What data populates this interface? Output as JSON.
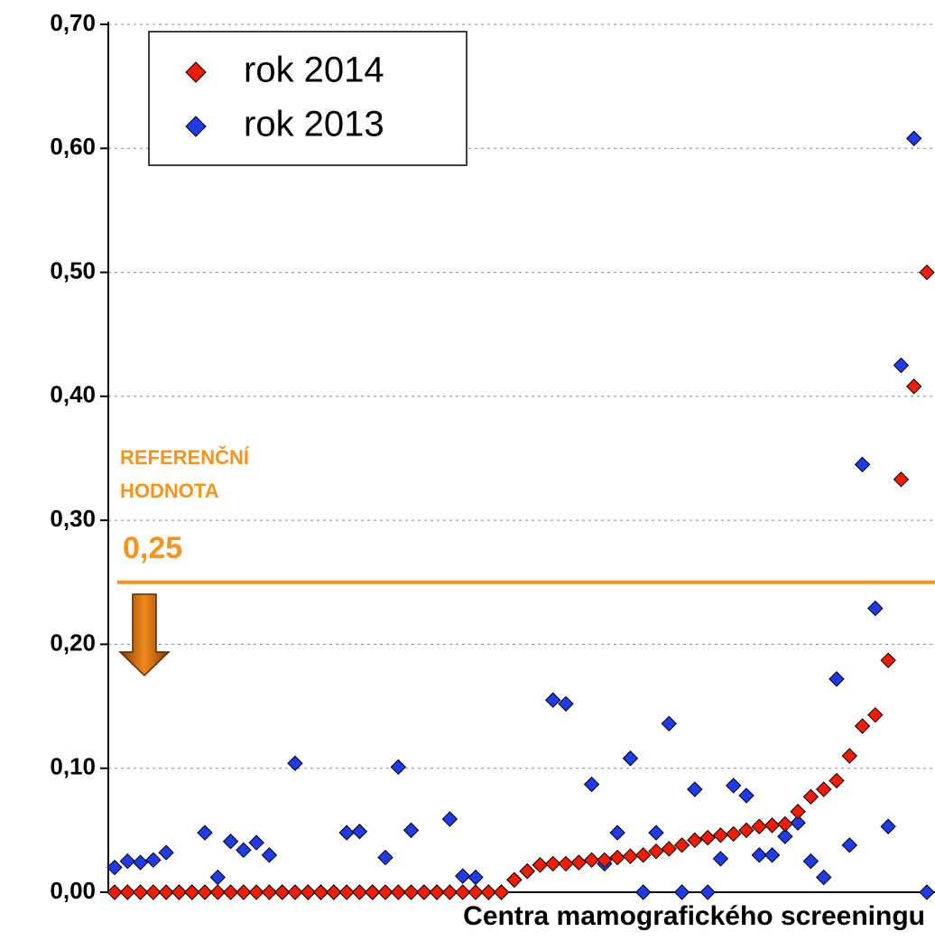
{
  "chart_data": {
    "type": "scatter",
    "x_label": "Centra mamografického screeningu",
    "categories": [
      null,
      null,
      null,
      null,
      null,
      null,
      null,
      null,
      null,
      null,
      null,
      null,
      null,
      null,
      null,
      null,
      null,
      null,
      null,
      null,
      null,
      null,
      null,
      null,
      null,
      null,
      null,
      null,
      null,
      null,
      null,
      null,
      null,
      null,
      null,
      null,
      null,
      null,
      null,
      null,
      null,
      null,
      null,
      null,
      null,
      null,
      null,
      null,
      null,
      null,
      null,
      null,
      null,
      null,
      null,
      null,
      null,
      null,
      null,
      null,
      null,
      null,
      null,
      null
    ],
    "series": [
      {
        "name": "rok 2014",
        "color": "#f21d00",
        "values": [
          0,
          0,
          0,
          0,
          0,
          0,
          0,
          0,
          0,
          0,
          0,
          0,
          0,
          0,
          0,
          0,
          0,
          0,
          0,
          0,
          0,
          0,
          0,
          0,
          0,
          0,
          0,
          0,
          0,
          0,
          0,
          0.01,
          0.017,
          0.022,
          0.023,
          0.023,
          0.024,
          0.026,
          0.026,
          0.028,
          0.029,
          0.03,
          0.033,
          0.035,
          0.038,
          0.042,
          0.044,
          0.046,
          0.047,
          0.05,
          0.053,
          0.054,
          0.055,
          0.065,
          0.077,
          0.083,
          0.09,
          0.11,
          0.134,
          0.143,
          0.187,
          0.333,
          0.408,
          0.5
        ]
      },
      {
        "name": "rok 2013",
        "color": "#1f3be8",
        "values": [
          0.02,
          0.025,
          0.024,
          0.026,
          0.032,
          0,
          0,
          0.048,
          0.012,
          0.041,
          0.034,
          0.04,
          0.03,
          0,
          0.104,
          0,
          0,
          0,
          0.048,
          0.049,
          0,
          0.028,
          0.101,
          0.05,
          0,
          0,
          0.059,
          0.013,
          0.012,
          0,
          0,
          0.01,
          0.017,
          0.022,
          0.155,
          0.152,
          0.024,
          0.087,
          0.023,
          0.048,
          0.108,
          0,
          0.048,
          0.136,
          0,
          0.083,
          0,
          0.027,
          0.086,
          0.078,
          0.03,
          0.03,
          0.045,
          0.056,
          0.025,
          0.012,
          0.172,
          0.038,
          0.345,
          0.229,
          0.053,
          0.425,
          0.608,
          0
        ]
      }
    ],
    "ylim": [
      0,
      0.7
    ],
    "yticks": [
      {
        "value": 0,
        "label": "0,00"
      },
      {
        "value": 0.1,
        "label": "0,10"
      },
      {
        "value": 0.2,
        "label": "0,20"
      },
      {
        "value": 0.3,
        "label": "0,30"
      },
      {
        "value": 0.4,
        "label": "0,40"
      },
      {
        "value": 0.5,
        "label": "0,50"
      },
      {
        "value": 0.6,
        "label": "0,60"
      },
      {
        "value": 0.7,
        "label": "0,70"
      }
    ],
    "grid": true,
    "legend": "upper left",
    "reference_line": {
      "value": 0.25,
      "label": "0,25",
      "title": [
        "REFERENČNÍ",
        "HODNOTA"
      ],
      "color": "#f7941d"
    }
  }
}
